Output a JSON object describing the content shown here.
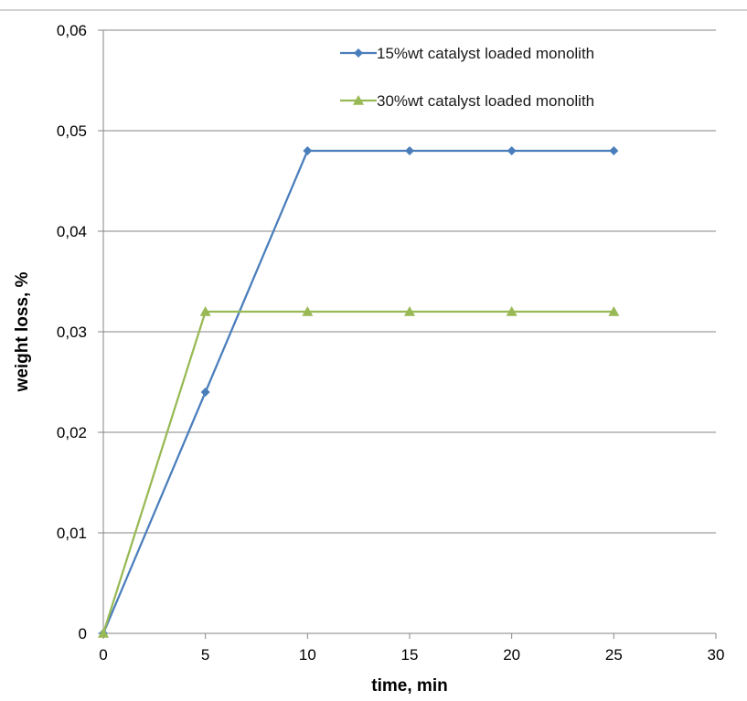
{
  "chart_data": {
    "type": "line",
    "xlabel": "time, min",
    "ylabel": "weight loss, %",
    "xlim": [
      0,
      30
    ],
    "ylim": [
      0,
      0.06
    ],
    "xticks": [
      0,
      5,
      10,
      15,
      20,
      25,
      30
    ],
    "yticks": [
      0,
      0.01,
      0.02,
      0.03,
      0.04,
      0.05,
      0.06
    ],
    "xtick_labels": [
      "0",
      "5",
      "10",
      "15",
      "20",
      "25",
      "30"
    ],
    "ytick_labels": [
      "0",
      "0,01",
      "0,02",
      "0,03",
      "0,04",
      "0,05",
      "0,06"
    ],
    "grid": "horizontal",
    "legend_position": "top-right",
    "series": [
      {
        "name": "15%wt catalyst loaded monolith",
        "color": "#4a7ebb",
        "marker": "diamond",
        "x": [
          0,
          5,
          10,
          15,
          20,
          25
        ],
        "y": [
          0,
          0.024,
          0.048,
          0.048,
          0.048,
          0.048
        ]
      },
      {
        "name": "30%wt catalyst loaded monolith",
        "color": "#98b954",
        "marker": "triangle",
        "x": [
          0,
          5,
          10,
          15,
          20,
          25
        ],
        "y": [
          0,
          0.032,
          0.032,
          0.032,
          0.032,
          0.032
        ]
      }
    ]
  }
}
